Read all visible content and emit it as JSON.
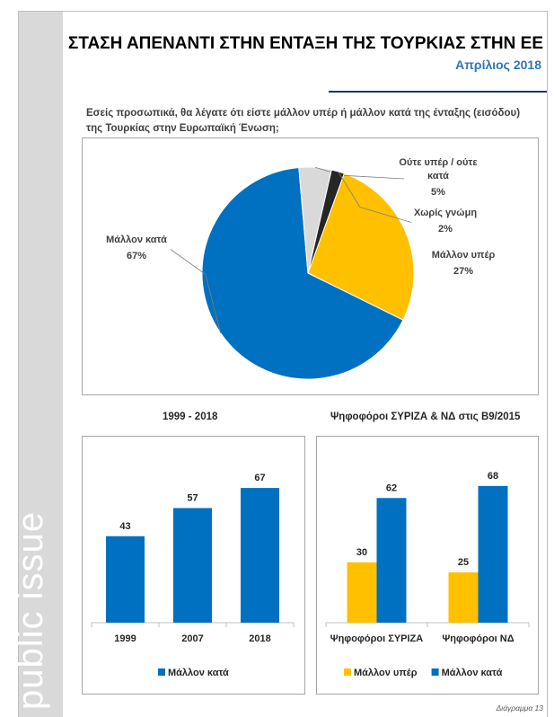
{
  "header": {
    "title": "ΣΤΑΣΗ ΑΠΕΝΑΝΤΙ ΣΤΗΝ ΕΝΤΑΞΗ ΤΗΣ ΤΟΥΡΚΙΑΣ ΣΤΗΝ ΕΕ",
    "subtitle": "Απρίλιος 2018"
  },
  "brand": {
    "text": "public issue"
  },
  "question": "Εσείς προσωπικά, θα λέγατε ότι είστε μάλλον υπέρ ή μάλλον κατά της ένταξης (εισόδου) της Τουρκίας στην Ευρωπαϊκή Ένωση;",
  "footer": {
    "label": "Διάγραμμα 13"
  },
  "colors": {
    "blue": "#0070c0",
    "yellow": "#ffc000",
    "grey": "#d9d9d9",
    "dark": "#262626"
  },
  "chart_data": [
    {
      "type": "pie",
      "slices": [
        {
          "label_lines": [
            "Μάλλον υπέρ"
          ],
          "pct_text": "27%",
          "value": 27,
          "color": "#ffc000"
        },
        {
          "label_lines": [
            "Μάλλον κατά"
          ],
          "pct_text": "67%",
          "value": 67,
          "color": "#0070c0"
        },
        {
          "label_lines": [
            "Ούτε υπέρ / ούτε",
            "κατά"
          ],
          "pct_text": "5%",
          "value": 5,
          "color": "#d9d9d9"
        },
        {
          "label_lines": [
            "Χωρίς γνώμη"
          ],
          "pct_text": "2%",
          "value": 2,
          "color": "#262626"
        }
      ]
    },
    {
      "type": "bar",
      "title": "1999 - 2018",
      "categories": [
        "1999",
        "2007",
        "2018"
      ],
      "series": [
        {
          "name": "Μάλλον κατά",
          "values": [
            43,
            57,
            67
          ],
          "color": "#0070c0"
        }
      ],
      "ylim": [
        0,
        80
      ],
      "legend": "bottom"
    },
    {
      "type": "bar",
      "title": "Ψηφοφόροι ΣΥΡΙΖΑ & ΝΔ στις Β9/2015",
      "categories": [
        "Ψηφοφόροι ΣΥΡΙΖΑ",
        "Ψηφοφόροι ΝΔ"
      ],
      "series": [
        {
          "name": "Μάλλον υπέρ",
          "values": [
            30,
            25
          ],
          "color": "#ffc000"
        },
        {
          "name": "Μάλλον κατά",
          "values": [
            62,
            68
          ],
          "color": "#0070c0"
        }
      ],
      "ylim": [
        0,
        80
      ],
      "legend": "bottom"
    }
  ]
}
